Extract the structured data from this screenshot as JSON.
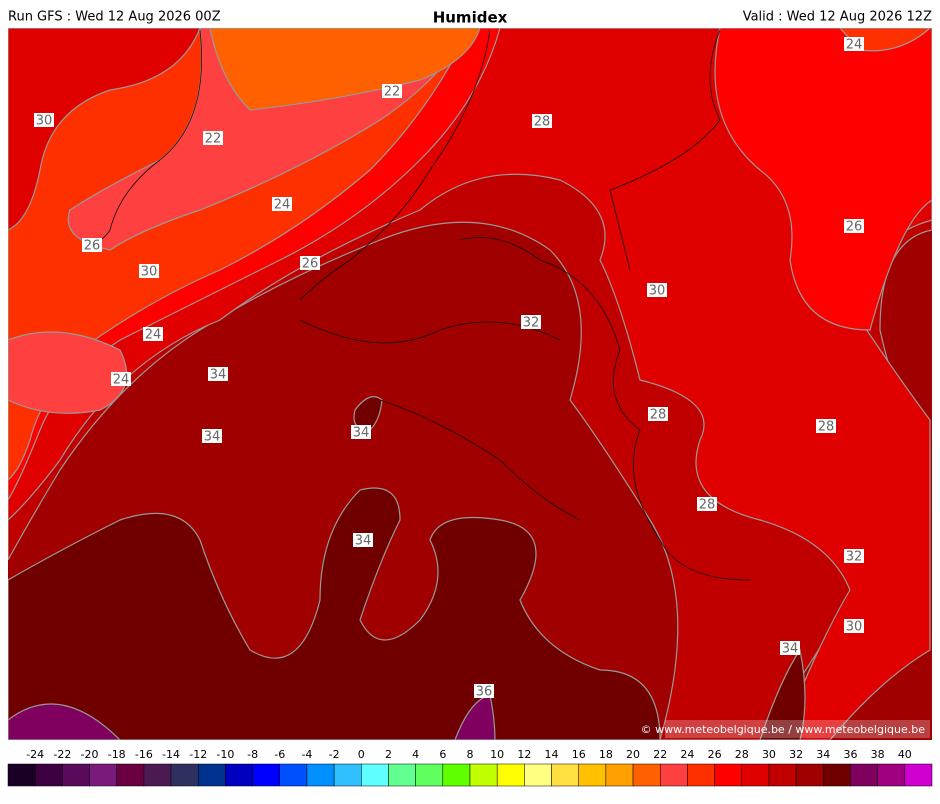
{
  "header": {
    "left": "Run GFS : Wed 12 Aug 2026 00Z",
    "title": "Humidex",
    "right": "Valid : Wed 12 Aug 2026 12Z"
  },
  "map": {
    "contour_labels": [
      30,
      22,
      22,
      28,
      24,
      24,
      26,
      26,
      26,
      30,
      30,
      24,
      24,
      34,
      34,
      34,
      32,
      28,
      28,
      28,
      32,
      30,
      34,
      34,
      36
    ],
    "credit": "© www.meteobelgique.be / www.meteobelgique.be"
  },
  "colorbar": {
    "ticks": [
      -24,
      -22,
      -20,
      -18,
      -16,
      -14,
      -12,
      -10,
      -8,
      -6,
      -4,
      -2,
      0,
      2,
      4,
      6,
      8,
      10,
      12,
      14,
      16,
      18,
      20,
      22,
      24,
      26,
      28,
      30,
      32,
      34,
      36,
      38,
      40
    ],
    "colors": [
      "#1a0025",
      "#3d0040",
      "#5a0a5a",
      "#7a1a7a",
      "#6a0040",
      "#4a1a50",
      "#303060",
      "#003090",
      "#0000c0",
      "#0000ff",
      "#0050ff",
      "#0090ff",
      "#30c0ff",
      "#60ffff",
      "#60ff90",
      "#60ff60",
      "#60ff00",
      "#c0ff00",
      "#ffff00",
      "#ffff80",
      "#ffe040",
      "#ffc000",
      "#ffa000",
      "#ff6000",
      "#ff4040",
      "#ff3000",
      "#ff0000",
      "#e00000",
      "#c00000",
      "#a00000",
      "#700000",
      "#800060",
      "#a00080",
      "#d000d0"
    ]
  }
}
